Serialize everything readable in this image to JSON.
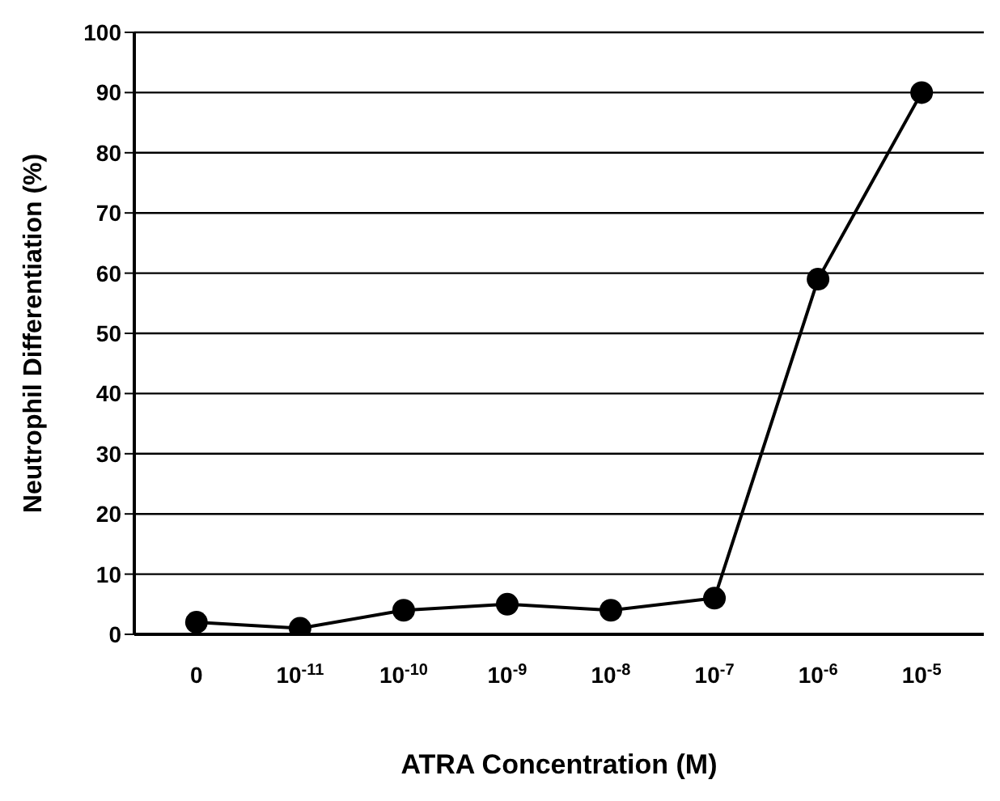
{
  "chart_data": {
    "type": "line",
    "xlabel": "ATRA Concentration (M)",
    "ylabel": "Neutrophil Differentiation (%)",
    "categories": [
      "0",
      "10$^{-11}$",
      "10$^{-10}$",
      "10$^{-9}$",
      "10$^{-8}$",
      "10$^{-7}$",
      "10$^{-6}$",
      "10$^{-5}$"
    ],
    "series": [
      {
        "color": "#000000",
        "values": [
          2,
          1,
          4,
          5,
          4,
          6,
          59,
          90
        ]
      }
    ],
    "ylim": [
      0,
      100
    ],
    "yticks": [
      0,
      10,
      20,
      30,
      40,
      50,
      60,
      70,
      80,
      90,
      100
    ],
    "grid": "y",
    "marker": "circle",
    "line_style": "solid"
  }
}
